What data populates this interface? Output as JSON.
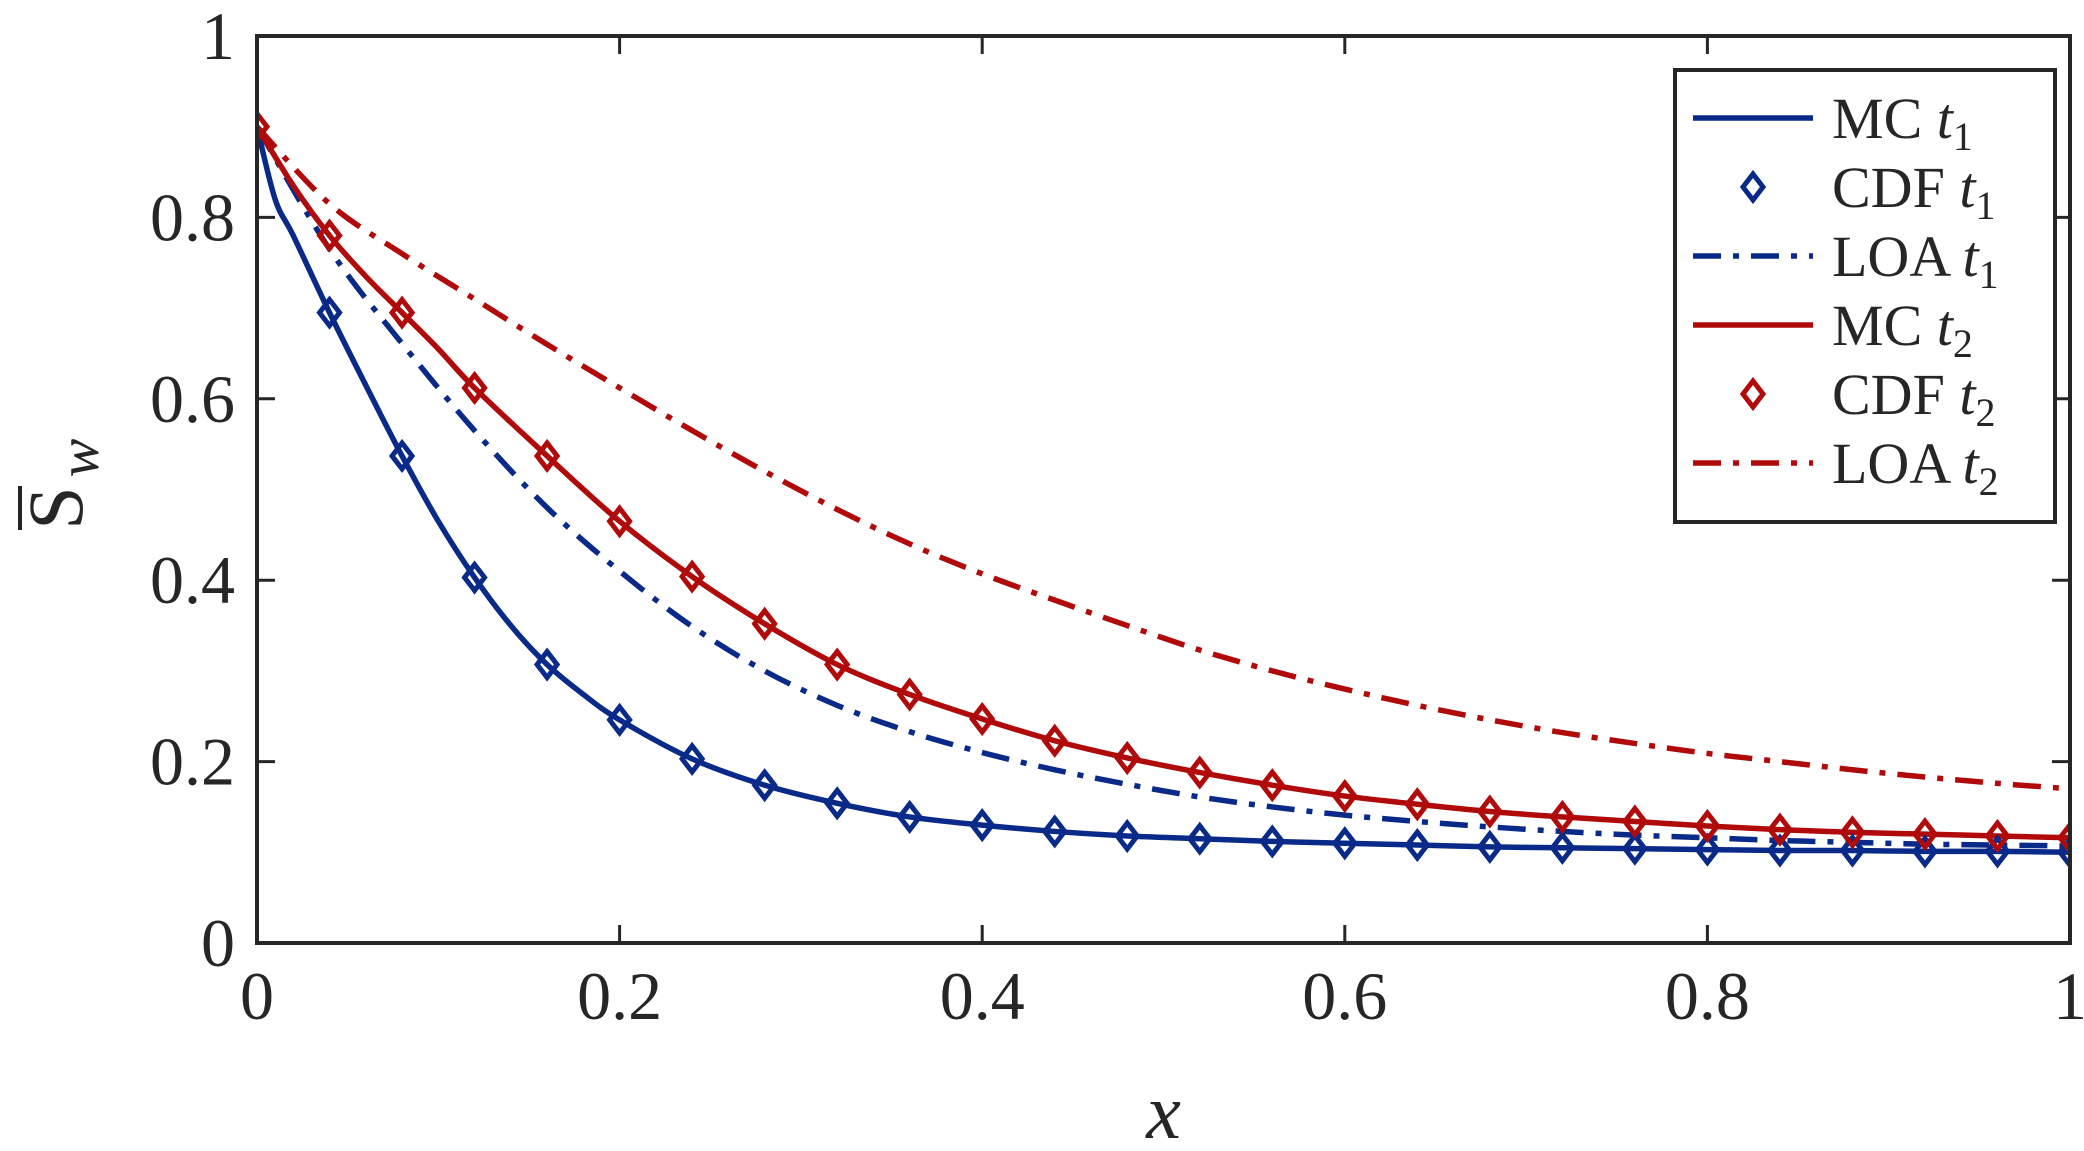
{
  "chart_data": {
    "type": "line",
    "title": "",
    "xlabel": "x",
    "ylabel": {
      "base": "S",
      "sub": "w",
      "overbar": true
    },
    "xlim": [
      0,
      1
    ],
    "ylim": [
      0,
      1
    ],
    "x_ticks": [
      0,
      0.2,
      0.4,
      0.6,
      0.8,
      1
    ],
    "y_ticks": [
      0,
      0.2,
      0.4,
      0.6,
      0.8,
      1
    ],
    "x_tick_labels": [
      "0",
      "0.2",
      "0.4",
      "0.6",
      "0.8",
      "1"
    ],
    "y_tick_labels": [
      "0",
      "0.2",
      "0.4",
      "0.6",
      "0.8",
      "1"
    ],
    "grid": false,
    "legend_position": "top-right",
    "colors": {
      "t1": "#0a2a8a",
      "t2": "#b00a0a",
      "axis": "#262626"
    },
    "series": [
      {
        "name": "MC t1",
        "label": "MC",
        "time": "t",
        "time_sub": "1",
        "style": "solid",
        "color": "#0a2a8a",
        "x": [
          0,
          0.01,
          0.02,
          0.04,
          0.06,
          0.08,
          0.1,
          0.12,
          0.14,
          0.16,
          0.18,
          0.2,
          0.24,
          0.28,
          0.32,
          0.36,
          0.4,
          0.44,
          0.48,
          0.52,
          0.56,
          0.6,
          0.64,
          0.68,
          0.72,
          0.76,
          0.8,
          0.84,
          0.88,
          0.92,
          0.96,
          1.0
        ],
        "y": [
          0.9,
          0.82,
          0.78,
          0.695,
          0.615,
          0.537,
          0.465,
          0.403,
          0.35,
          0.307,
          0.274,
          0.246,
          0.203,
          0.174,
          0.154,
          0.139,
          0.13,
          0.123,
          0.118,
          0.115,
          0.112,
          0.11,
          0.108,
          0.106,
          0.105,
          0.104,
          0.103,
          0.102,
          0.102,
          0.101,
          0.101,
          0.1
        ]
      },
      {
        "name": "CDF t1",
        "label": "CDF",
        "time": "t",
        "time_sub": "1",
        "style": "marker",
        "color": "#0a2a8a",
        "x": [
          0.04,
          0.08,
          0.12,
          0.16,
          0.2,
          0.24,
          0.28,
          0.32,
          0.36,
          0.4,
          0.44,
          0.48,
          0.52,
          0.56,
          0.6,
          0.64,
          0.68,
          0.72,
          0.76,
          0.8,
          0.84,
          0.88,
          0.92,
          0.96,
          1.0
        ],
        "y": [
          0.695,
          0.537,
          0.403,
          0.307,
          0.246,
          0.203,
          0.174,
          0.154,
          0.139,
          0.13,
          0.123,
          0.118,
          0.115,
          0.112,
          0.11,
          0.108,
          0.106,
          0.105,
          0.104,
          0.103,
          0.102,
          0.102,
          0.101,
          0.101,
          0.1
        ]
      },
      {
        "name": "LOA t1",
        "label": "LOA",
        "time": "t",
        "time_sub": "1",
        "style": "dashdot",
        "color": "#0a2a8a",
        "x": [
          0,
          0.04,
          0.08,
          0.12,
          0.16,
          0.2,
          0.24,
          0.28,
          0.32,
          0.36,
          0.4,
          0.44,
          0.48,
          0.52,
          0.56,
          0.6,
          0.64,
          0.68,
          0.72,
          0.76,
          0.8,
          0.84,
          0.88,
          0.92,
          0.96,
          1.0
        ],
        "y": [
          0.9,
          0.765,
          0.661,
          0.565,
          0.48,
          0.41,
          0.349,
          0.3,
          0.262,
          0.233,
          0.21,
          0.191,
          0.175,
          0.161,
          0.15,
          0.141,
          0.134,
          0.128,
          0.123,
          0.119,
          0.116,
          0.113,
          0.111,
          0.109,
          0.108,
          0.107
        ]
      },
      {
        "name": "MC t2",
        "label": "MC",
        "time": "t",
        "time_sub": "2",
        "style": "solid",
        "color": "#b00a0a",
        "x": [
          0,
          0.02,
          0.04,
          0.06,
          0.08,
          0.1,
          0.12,
          0.16,
          0.2,
          0.24,
          0.28,
          0.32,
          0.36,
          0.4,
          0.44,
          0.48,
          0.52,
          0.56,
          0.6,
          0.64,
          0.68,
          0.72,
          0.76,
          0.8,
          0.84,
          0.88,
          0.92,
          0.96,
          1.0
        ],
        "y": [
          0.9,
          0.835,
          0.78,
          0.735,
          0.695,
          0.655,
          0.612,
          0.537,
          0.465,
          0.404,
          0.352,
          0.307,
          0.274,
          0.247,
          0.223,
          0.204,
          0.188,
          0.174,
          0.162,
          0.153,
          0.145,
          0.139,
          0.134,
          0.129,
          0.125,
          0.122,
          0.12,
          0.118,
          0.116
        ]
      },
      {
        "name": "CDF t2",
        "label": "CDF",
        "time": "t",
        "time_sub": "2",
        "style": "marker",
        "color": "#b00a0a",
        "x": [
          0,
          0.04,
          0.08,
          0.12,
          0.16,
          0.2,
          0.24,
          0.28,
          0.32,
          0.36,
          0.4,
          0.44,
          0.48,
          0.52,
          0.56,
          0.6,
          0.64,
          0.68,
          0.72,
          0.76,
          0.8,
          0.84,
          0.88,
          0.92,
          0.96,
          1.0
        ],
        "y": [
          0.9,
          0.78,
          0.695,
          0.612,
          0.537,
          0.465,
          0.404,
          0.352,
          0.307,
          0.274,
          0.247,
          0.223,
          0.204,
          0.188,
          0.174,
          0.162,
          0.153,
          0.145,
          0.139,
          0.134,
          0.129,
          0.125,
          0.122,
          0.12,
          0.118,
          0.116
        ]
      },
      {
        "name": "LOA t2",
        "label": "LOA",
        "time": "t",
        "time_sub": "2",
        "style": "dashdot",
        "color": "#b00a0a",
        "x": [
          0,
          0.04,
          0.08,
          0.12,
          0.16,
          0.2,
          0.24,
          0.28,
          0.32,
          0.36,
          0.4,
          0.44,
          0.48,
          0.52,
          0.56,
          0.6,
          0.64,
          0.68,
          0.72,
          0.76,
          0.8,
          0.84,
          0.88,
          0.92,
          0.96,
          1.0
        ],
        "y": [
          0.9,
          0.815,
          0.76,
          0.71,
          0.66,
          0.612,
          0.565,
          0.52,
          0.478,
          0.44,
          0.407,
          0.378,
          0.35,
          0.323,
          0.3,
          0.28,
          0.262,
          0.246,
          0.232,
          0.22,
          0.209,
          0.2,
          0.191,
          0.183,
          0.176,
          0.17
        ]
      }
    ]
  }
}
